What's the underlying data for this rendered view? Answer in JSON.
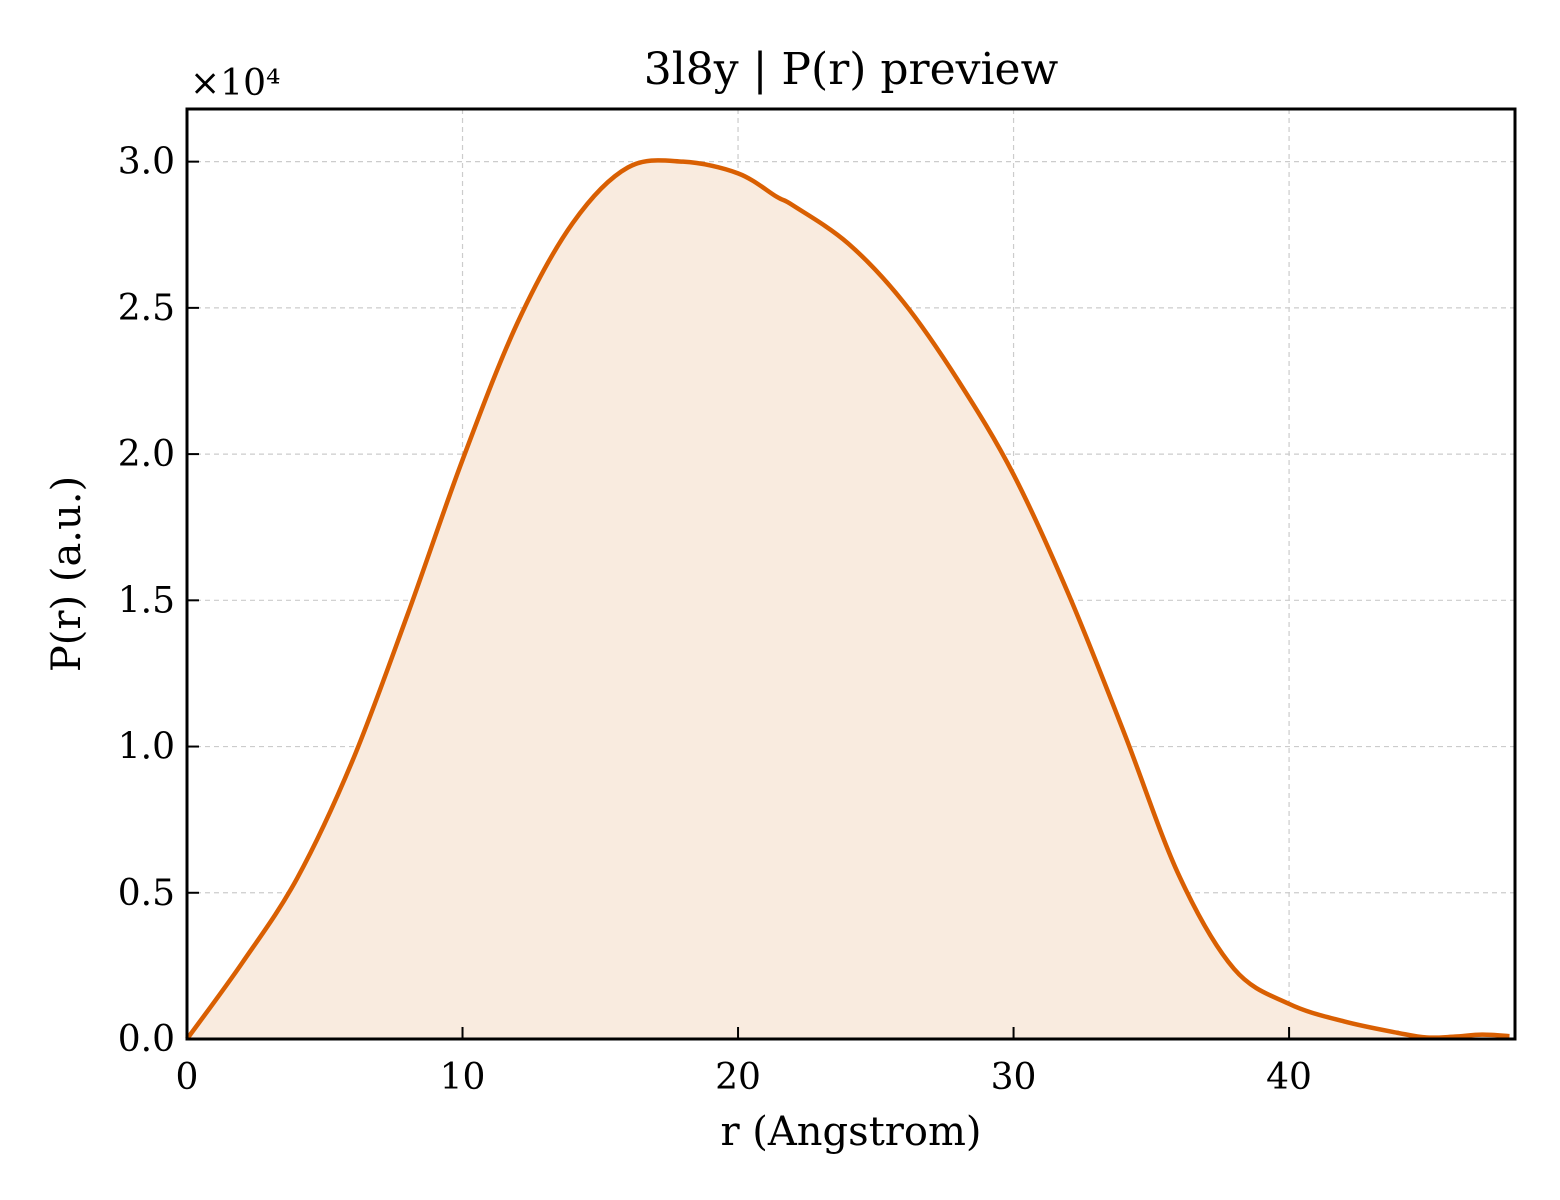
{
  "chart_data": {
    "type": "area",
    "title": "3l8y | P(r) preview",
    "xlabel": "r (Angstrom)",
    "ylabel": "P(r) (a.u.)",
    "y_multiplier": "×10⁴",
    "xlim": [
      0,
      48.2
    ],
    "ylim": [
      0,
      3.18
    ],
    "xticks": [
      0,
      10,
      20,
      30,
      40
    ],
    "yticks": [
      0.0,
      0.5,
      1.0,
      1.5,
      2.0,
      2.5,
      3.0
    ],
    "xtick_labels": [
      "0",
      "10",
      "20",
      "30",
      "40"
    ],
    "ytick_labels": [
      "0.0",
      "0.5",
      "1.0",
      "1.5",
      "2.0",
      "2.5",
      "3.0"
    ],
    "grid": true,
    "line_color": "#d95f02",
    "fill_color": "#f9ebdf",
    "series": [
      {
        "x": [
          0,
          2,
          4,
          6,
          8,
          10,
          12,
          14,
          16,
          18,
          20,
          21.4,
          22,
          24,
          26,
          28,
          30,
          32,
          34,
          36,
          38,
          40,
          42,
          44,
          45,
          46,
          47,
          48
        ],
        "values": [
          0.0,
          0.26,
          0.55,
          0.95,
          1.45,
          1.98,
          2.45,
          2.79,
          2.98,
          3.0,
          2.96,
          2.88,
          2.85,
          2.72,
          2.52,
          2.25,
          1.93,
          1.52,
          1.05,
          0.56,
          0.24,
          0.12,
          0.06,
          0.02,
          0.005,
          0.008,
          0.015,
          0.01
        ]
      }
    ]
  }
}
